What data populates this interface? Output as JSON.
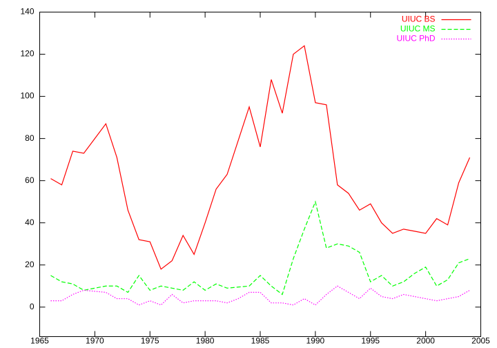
{
  "chart_data": {
    "type": "line",
    "x": [
      1966,
      1967,
      1968,
      1969,
      1970,
      1971,
      1972,
      1973,
      1974,
      1975,
      1976,
      1977,
      1978,
      1979,
      1980,
      1981,
      1982,
      1983,
      1984,
      1985,
      1986,
      1987,
      1988,
      1989,
      1990,
      1991,
      1992,
      1993,
      1994,
      1995,
      1996,
      1997,
      1998,
      1999,
      2000,
      2001,
      2002,
      2003,
      2004
    ],
    "series": [
      {
        "name": "UIUC BS",
        "color": "#ff0000",
        "values": [
          61,
          58,
          74,
          73,
          80,
          87,
          71,
          46,
          32,
          31,
          18,
          22,
          34,
          25,
          40,
          56,
          63,
          79,
          95,
          76,
          108,
          92,
          120,
          124,
          97,
          96,
          58,
          54,
          46,
          49,
          40,
          35,
          37,
          36,
          35,
          42,
          39,
          59,
          71
        ]
      },
      {
        "name": "UIUC MS",
        "color": "#00ff00",
        "values": [
          15,
          12,
          11,
          8,
          9,
          10,
          10,
          7,
          15,
          8,
          10,
          9,
          8,
          12,
          8,
          11,
          9,
          9.5,
          10,
          15,
          10,
          6,
          23,
          37,
          50,
          28,
          30,
          29,
          26,
          12,
          15,
          10,
          12,
          16,
          19,
          10,
          13,
          21,
          23
        ]
      },
      {
        "name": "UIUC PhD",
        "color": "#ff00ff",
        "values": [
          3,
          3,
          6,
          8,
          7.5,
          7,
          4,
          4,
          1,
          3,
          1,
          6,
          2,
          3,
          3,
          3,
          2,
          4,
          7,
          7,
          2,
          2,
          1,
          4,
          1,
          6,
          10,
          7,
          4,
          9,
          5,
          4,
          6,
          5,
          4,
          3,
          4,
          5,
          8
        ]
      }
    ],
    "xlim": [
      1965,
      2005
    ],
    "xticks": [
      1965,
      1970,
      1975,
      1980,
      1985,
      1990,
      1995,
      2000,
      2005
    ],
    "ylim": [
      -14,
      140
    ],
    "yticks": [
      0,
      20,
      40,
      60,
      80,
      100,
      120,
      140
    ],
    "legend": "top-right",
    "grid": false
  }
}
